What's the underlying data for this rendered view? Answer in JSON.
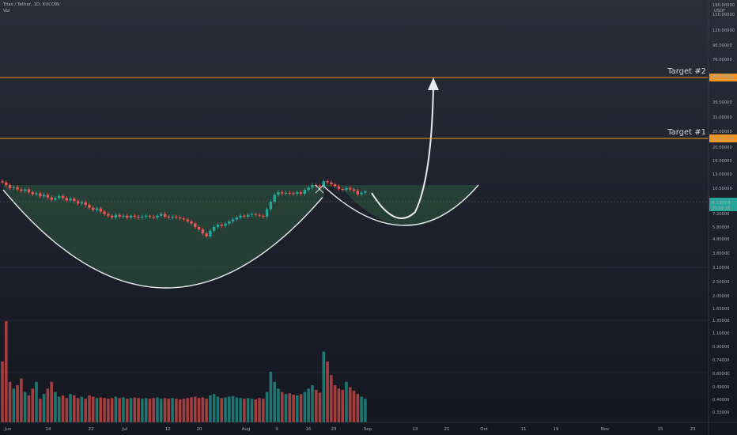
{
  "legend": {
    "symbol_line": "Trias / Tether, 1D, KUCOIN",
    "volume_label": "Vol"
  },
  "price_axis": {
    "currency": "USDT",
    "ticks": [
      "190.00000",
      "150.00000",
      "120.00000",
      "96.00000",
      "76.00000",
      "49.00000",
      "39.00000",
      "31.00000",
      "25.00000",
      "20.00000",
      "16.00000",
      "13.00000",
      "10.50000",
      "7.20000",
      "5.80000",
      "4.80000",
      "3.80000",
      "3.10000",
      "2.50000",
      "2.00000",
      "1.65000",
      "1.35000",
      "1.10000",
      "0.90000",
      "0.74000",
      "0.60000",
      "0.49000",
      "0.40000",
      "0.33000"
    ]
  },
  "time_axis": {
    "ticks": [
      "Jun",
      "14",
      "22",
      "Jul",
      "12",
      "20",
      "Aug",
      "9",
      "16",
      "23",
      "Sep",
      "13",
      "21",
      "Oct",
      "11",
      "19",
      "Nov",
      "15",
      "23"
    ]
  },
  "targets": [
    {
      "label": "Target #2",
      "value": "57.73374",
      "color": "#f7931a"
    },
    {
      "label": "Target #1",
      "value": "22.60519",
      "color": "#f7931a"
    }
  ],
  "last_price": {
    "value": "8.19004",
    "countdown": "20:09:16",
    "color": "#26a69a"
  },
  "colors": {
    "up": "#26a69a",
    "down": "#ef5350",
    "pattern_fill": "#2e5a3f",
    "curve": "#e8eaed"
  },
  "chart_data": {
    "type": "candlestick",
    "symbol": "Trias / Tether",
    "interval": "1D",
    "exchange": "KUCOIN",
    "y_scale": "log",
    "ylim": [
      0.3,
      210
    ],
    "x_range": [
      "2021-06-01",
      "2021-11-28"
    ],
    "annotations": [
      "Target #2",
      "Target #1"
    ],
    "close": [
      10.3,
      9.6,
      8.9,
      9.1,
      8.6,
      8.3,
      8.6,
      8.0,
      7.6,
      7.8,
      7.2,
      7.5,
      7.0,
      6.6,
      6.9,
      7.3,
      6.9,
      6.5,
      6.8,
      6.4,
      6.0,
      6.2,
      5.8,
      5.4,
      5.1,
      5.3,
      4.9,
      4.6,
      4.4,
      4.2,
      4.5,
      4.3,
      4.4,
      4.2,
      4.4,
      4.3,
      4.2,
      4.3,
      4.4,
      4.3,
      4.2,
      4.4,
      4.6,
      4.3,
      4.2,
      4.3,
      4.2,
      4.1,
      4.0,
      3.8,
      3.6,
      3.3,
      3.1,
      2.8,
      2.6,
      3.0,
      3.3,
      3.5,
      3.4,
      3.6,
      3.8,
      4.0,
      4.2,
      4.4,
      4.3,
      4.5,
      4.6,
      4.5,
      4.4,
      4.3,
      5.2,
      6.3,
      7.5,
      8.0,
      7.8,
      7.9,
      7.8,
      7.7,
      8.0,
      7.7,
      8.5,
      9.0,
      9.6,
      9.4,
      9.2,
      10.6,
      10.3,
      9.8,
      9.3,
      8.7,
      8.5,
      8.9,
      8.6,
      8.3,
      7.6,
      7.9,
      8.19
    ],
    "volume": [
      0.9,
      1.5,
      0.6,
      0.5,
      0.55,
      0.65,
      0.45,
      0.4,
      0.5,
      0.6,
      0.35,
      0.42,
      0.5,
      0.6,
      0.45,
      0.38,
      0.4,
      0.36,
      0.42,
      0.4,
      0.36,
      0.38,
      0.35,
      0.4,
      0.38,
      0.36,
      0.37,
      0.36,
      0.35,
      0.36,
      0.38,
      0.36,
      0.37,
      0.35,
      0.36,
      0.37,
      0.36,
      0.35,
      0.36,
      0.35,
      0.36,
      0.37,
      0.35,
      0.36,
      0.35,
      0.36,
      0.35,
      0.34,
      0.35,
      0.36,
      0.37,
      0.38,
      0.36,
      0.37,
      0.35,
      0.4,
      0.42,
      0.38,
      0.36,
      0.37,
      0.38,
      0.39,
      0.37,
      0.36,
      0.35,
      0.36,
      0.35,
      0.34,
      0.36,
      0.35,
      0.45,
      0.75,
      0.6,
      0.5,
      0.45,
      0.42,
      0.43,
      0.41,
      0.4,
      0.42,
      0.45,
      0.5,
      0.55,
      0.48,
      0.44,
      1.05,
      0.9,
      0.7,
      0.55,
      0.5,
      0.48,
      0.6,
      0.52,
      0.47,
      0.42,
      0.38,
      0.35
    ]
  }
}
